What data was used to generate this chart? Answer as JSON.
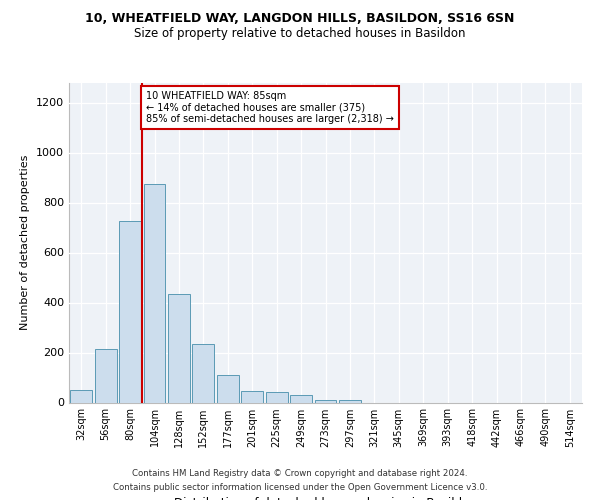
{
  "title1": "10, WHEATFIELD WAY, LANGDON HILLS, BASILDON, SS16 6SN",
  "title2": "Size of property relative to detached houses in Basildon",
  "xlabel": "Distribution of detached houses by size in Basildon",
  "ylabel": "Number of detached properties",
  "categories": [
    "32sqm",
    "56sqm",
    "80sqm",
    "104sqm",
    "128sqm",
    "152sqm",
    "177sqm",
    "201sqm",
    "225sqm",
    "249sqm",
    "273sqm",
    "297sqm",
    "321sqm",
    "345sqm",
    "369sqm",
    "393sqm",
    "418sqm",
    "442sqm",
    "466sqm",
    "490sqm",
    "514sqm"
  ],
  "values": [
    50,
    215,
    725,
    875,
    435,
    235,
    110,
    48,
    42,
    32,
    10,
    10,
    0,
    0,
    0,
    0,
    0,
    0,
    0,
    0,
    0
  ],
  "bar_color": "#ccdded",
  "bar_edge_color": "#5a9ab5",
  "annotation_title": "10 WHEATFIELD WAY: 85sqm",
  "annotation_line1": "← 14% of detached houses are smaller (375)",
  "annotation_line2": "85% of semi-detached houses are larger (2,318) →",
  "annotation_box_facecolor": "#ffffff",
  "annotation_border_color": "#cc0000",
  "vline_color": "#cc0000",
  "vline_x_idx": 2.5,
  "ylim": [
    0,
    1280
  ],
  "yticks": [
    0,
    200,
    400,
    600,
    800,
    1000,
    1200
  ],
  "footnote1": "Contains HM Land Registry data © Crown copyright and database right 2024.",
  "footnote2": "Contains public sector information licensed under the Open Government Licence v3.0.",
  "bg_color": "#eef2f7"
}
